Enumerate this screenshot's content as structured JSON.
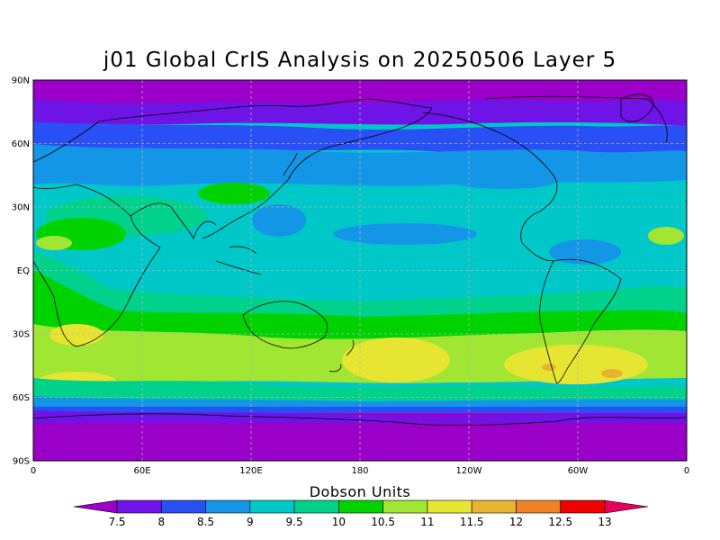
{
  "title": "j01 Global CrIS Analysis on 20250506 Layer 5",
  "map": {
    "projection": "cylindrical-equidistant",
    "grid": true,
    "lat_ticks": [
      {
        "label": "90N",
        "value": 90
      },
      {
        "label": "60N",
        "value": 60
      },
      {
        "label": "30N",
        "value": 30
      },
      {
        "label": "EQ",
        "value": 0
      },
      {
        "label": "30S",
        "value": -30
      },
      {
        "label": "60S",
        "value": -60
      },
      {
        "label": "90S",
        "value": -90
      }
    ],
    "lon_ticks": [
      {
        "label": "0",
        "value": 0
      },
      {
        "label": "60E",
        "value": 60
      },
      {
        "label": "120E",
        "value": 120
      },
      {
        "label": "180",
        "value": 180
      },
      {
        "label": "120W",
        "value": 240
      },
      {
        "label": "60W",
        "value": 300
      },
      {
        "label": "0",
        "value": 360
      }
    ]
  },
  "colorbar": {
    "title": "Dobson Units",
    "levels": [
      "7.5",
      "8",
      "8.5",
      "9",
      "9.5",
      "10",
      "10.5",
      "11",
      "11.5",
      "12",
      "12.5",
      "13"
    ],
    "colors": [
      "#9a00c8",
      "#6e14e6",
      "#2850f5",
      "#1496e6",
      "#00c8c8",
      "#00d28c",
      "#00d200",
      "#a0e632",
      "#e6e632",
      "#e6b432",
      "#f08228",
      "#f00000",
      "#e6005a"
    ]
  }
}
